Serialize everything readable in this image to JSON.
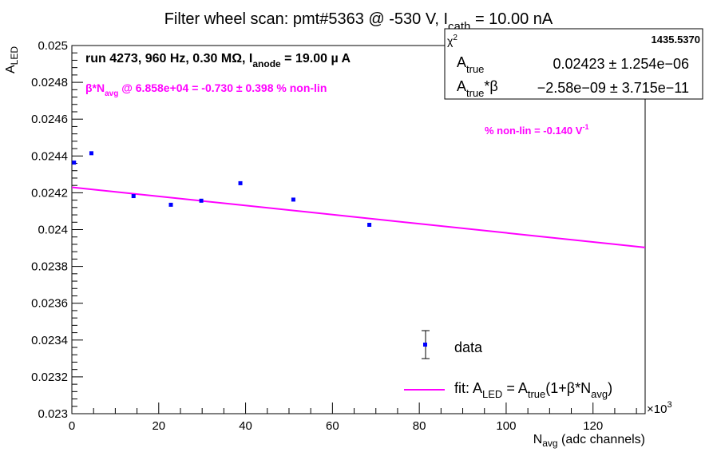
{
  "chart_data": {
    "type": "scatter",
    "title": {
      "main": "Filter wheel scan: pmt#5363 @  -530 V, I",
      "sub": "cath",
      "tail": " = 10.00 nA"
    },
    "xlabel": {
      "main": "N",
      "sub": "avg",
      "tail": " (adc channels)"
    },
    "ylabel": {
      "main": "A",
      "sub": "LED"
    },
    "x_multiplier": "×10",
    "x_multiplier_exp": "3",
    "xlim": [
      0,
      132
    ],
    "ylim": [
      0.023,
      0.025
    ],
    "x_ticks": [
      0,
      20,
      40,
      60,
      80,
      100,
      120
    ],
    "x_tick_labels": [
      "0",
      "20",
      "40",
      "60",
      "80",
      "100",
      "120"
    ],
    "y_ticks": [
      0.023,
      0.0232,
      0.0234,
      0.0236,
      0.0238,
      0.024,
      0.0242,
      0.0244,
      0.0246,
      0.0248,
      0.025
    ],
    "y_tick_labels": [
      "0.023",
      "0.0232",
      "0.0234",
      "0.0236",
      "0.0238",
      "0.024",
      "0.0242",
      "0.0244",
      "0.0246",
      "0.0248",
      "0.025"
    ],
    "data": {
      "name": "data",
      "x": [
        0.5,
        4.5,
        14.2,
        22.8,
        29.8,
        38.8,
        51.0,
        68.5
      ],
      "y": [
        0.024364,
        0.024415,
        0.024182,
        0.024135,
        0.024157,
        0.024252,
        0.024163,
        0.024026
      ],
      "color": "#0000ff"
    },
    "fit": {
      "name": "fit",
      "x": [
        0,
        132
      ],
      "y": [
        0.02423,
        0.023903
      ],
      "color": "#ff00ff"
    },
    "run_info": {
      "main": "run 4273, 960 Hz, 0.30 MΩ, I",
      "sub": "anode",
      "tail": " = 19.00 µ A"
    },
    "nonlin_label": {
      "pre": "β*N",
      "sub": "avg",
      "tail": " @ 6.858e+04 = -0.730 ± 0.398 % non-lin"
    },
    "nonlin_per_volt": {
      "main": "% non-lin = -0.140 V",
      "sup": "-1"
    },
    "stats": {
      "chi2_label": "χ",
      "chi2_sup": "2",
      "chi2_value": "1435.5370",
      "row1_label": "A",
      "row1_sub": "true",
      "row1_value": "0.02423 ± 1.254e−06",
      "row2_label": "A",
      "row2_sub": "true",
      "row2_tail": "*β",
      "row2_value": "−2.58e−09 ± 3.715e−11"
    },
    "legend": {
      "data_label": "data",
      "fit_label": {
        "pre": "fit: A",
        "sub1": "LED",
        "mid": " = A",
        "sub2": "true",
        "mid2": "(1+β*N",
        "sub3": "avg",
        "tail": ")"
      },
      "placement": "bottom-right"
    }
  }
}
